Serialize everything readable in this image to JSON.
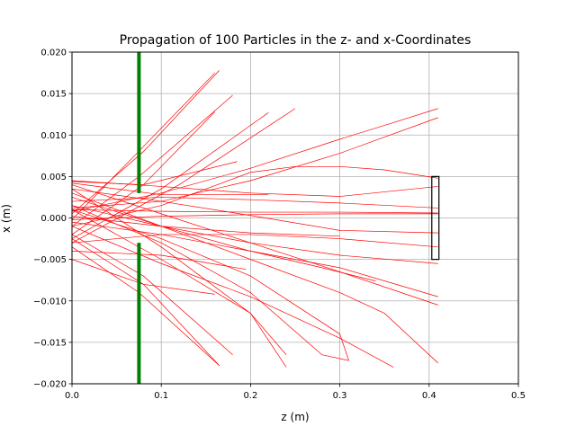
{
  "chart_data": {
    "type": "line",
    "title": "Propagation of 100 Particles in the z- and x-Coordinates",
    "xlabel": "z (m)",
    "ylabel": "x (m)",
    "xlim": [
      0,
      0.5
    ],
    "ylim": [
      -0.02,
      0.02
    ],
    "xticks": [
      0.0,
      0.1,
      0.2,
      0.3,
      0.4,
      0.5
    ],
    "xtick_labels": [
      "0.0",
      "0.1",
      "0.2",
      "0.3",
      "0.4",
      "0.5"
    ],
    "yticks": [
      -0.02,
      -0.015,
      -0.01,
      -0.005,
      0.0,
      0.005,
      0.01,
      0.015,
      0.02
    ],
    "ytick_labels": [
      "−0.020",
      "−0.015",
      "−0.010",
      "−0.005",
      "0.000",
      "0.005",
      "0.010",
      "0.015",
      "0.020"
    ],
    "grid": true,
    "trajectory_color": "#ff0000",
    "aperture_color": "#008000",
    "detector_color": "#000000",
    "aperture": {
      "z": 0.075,
      "upper": [
        0.003,
        0.02
      ],
      "lower": [
        -0.02,
        -0.003
      ]
    },
    "detector": {
      "z": [
        0.403,
        0.411
      ],
      "x": [
        -0.005,
        0.005
      ]
    },
    "series": [
      {
        "x": [
          0.0,
          0.08,
          0.165
        ],
        "y": [
          0.0005,
          0.008,
          0.0178
        ]
      },
      {
        "x": [
          0.0,
          0.07,
          0.16
        ],
        "y": [
          -0.0002,
          0.0075,
          0.0175
        ]
      },
      {
        "x": [
          0.0,
          0.075,
          0.18
        ],
        "y": [
          -0.001,
          0.005,
          0.0148
        ]
      },
      {
        "x": [
          0.0,
          0.08,
          0.16
        ],
        "y": [
          -0.002,
          0.004,
          0.0128
        ]
      },
      {
        "x": [
          0.0,
          0.1,
          0.22
        ],
        "y": [
          -0.0025,
          0.0035,
          0.0127
        ]
      },
      {
        "x": [
          0.0,
          0.12,
          0.25
        ],
        "y": [
          -0.003,
          0.004,
          0.0132
        ]
      },
      {
        "x": [
          0.0,
          0.08,
          0.185
        ],
        "y": [
          0.0044,
          0.004,
          0.0068
        ]
      },
      {
        "x": [
          0.0,
          0.1,
          0.2,
          0.3,
          0.36,
          0.41
        ],
        "y": [
          0.0008,
          0.003,
          0.006,
          0.0095,
          0.0115,
          0.0132
        ]
      },
      {
        "x": [
          0.0,
          0.1,
          0.2,
          0.3,
          0.41
        ],
        "y": [
          0.0012,
          0.002,
          0.0045,
          0.0078,
          0.0121
        ]
      },
      {
        "x": [
          0.0,
          0.1,
          0.2,
          0.25,
          0.3,
          0.35,
          0.41
        ],
        "y": [
          -0.001,
          0.0015,
          0.0055,
          0.0062,
          0.0062,
          0.0058,
          0.0048
        ]
      },
      {
        "x": [
          0.0,
          0.1,
          0.2,
          0.3,
          0.41
        ],
        "y": [
          0.0045,
          0.0038,
          0.003,
          0.0026,
          0.0038
        ]
      },
      {
        "x": [
          0.0,
          0.1,
          0.2,
          0.3,
          0.41
        ],
        "y": [
          0.002,
          0.0025,
          0.0022,
          0.0018,
          0.0012
        ]
      },
      {
        "x": [
          0.0,
          0.1,
          0.2,
          0.3,
          0.41
        ],
        "y": [
          0.001,
          0.0008,
          0.0007,
          0.0007,
          0.0006
        ]
      },
      {
        "x": [
          0.0,
          0.1,
          0.2,
          0.3,
          0.41
        ],
        "y": [
          -0.0002,
          0.0002,
          0.0004,
          0.0005,
          0.0005
        ]
      },
      {
        "x": [
          0.0,
          0.1,
          0.2,
          0.3,
          0.41
        ],
        "y": [
          0.0035,
          0.002,
          0.0003,
          -0.0015,
          -0.0018
        ]
      },
      {
        "x": [
          0.0,
          0.1,
          0.2,
          0.3,
          0.41
        ],
        "y": [
          -0.003,
          -0.002,
          -0.002,
          -0.0025,
          -0.0035
        ]
      },
      {
        "x": [
          0.0,
          0.1,
          0.2,
          0.3,
          0.41
        ],
        "y": [
          0.0015,
          -0.001,
          -0.003,
          -0.0045,
          -0.0055
        ]
      },
      {
        "x": [
          0.0,
          0.1,
          0.2,
          0.3,
          0.41
        ],
        "y": [
          -0.0005,
          -0.002,
          -0.004,
          -0.006,
          -0.0095
        ]
      },
      {
        "x": [
          0.0,
          0.1,
          0.2,
          0.3,
          0.41
        ],
        "y": [
          0.004,
          0.0005,
          -0.003,
          -0.0065,
          -0.0105
        ]
      },
      {
        "x": [
          0.0,
          0.1,
          0.2,
          0.3,
          0.35,
          0.41
        ],
        "y": [
          0.0025,
          -0.001,
          -0.005,
          -0.009,
          -0.0115,
          -0.0175
        ]
      },
      {
        "x": [
          0.0,
          0.1,
          0.2,
          0.28,
          0.34
        ],
        "y": [
          0.003,
          -0.001,
          -0.004,
          -0.006,
          -0.0076
        ]
      },
      {
        "x": [
          0.0,
          0.1,
          0.2,
          0.3,
          0.36
        ],
        "y": [
          -0.001,
          -0.0055,
          -0.0095,
          -0.0145,
          -0.018
        ]
      },
      {
        "x": [
          0.0,
          0.1,
          0.2,
          0.24
        ],
        "y": [
          0.0035,
          -0.0035,
          -0.0115,
          -0.018
        ]
      },
      {
        "x": [
          0.0,
          0.1,
          0.2,
          0.24
        ],
        "y": [
          0.001,
          -0.005,
          -0.0115,
          -0.0165
        ]
      },
      {
        "x": [
          0.0,
          0.1,
          0.2,
          0.28,
          0.31
        ],
        "y": [
          0.0015,
          -0.003,
          -0.009,
          -0.0165,
          -0.0172
        ]
      },
      {
        "x": [
          0.0,
          0.1,
          0.2,
          0.3,
          0.31
        ],
        "y": [
          0.001,
          -0.0025,
          -0.007,
          -0.014,
          -0.0172
        ]
      },
      {
        "x": [
          0.0,
          0.08,
          0.165
        ],
        "y": [
          -0.0025,
          -0.008,
          -0.0178
        ]
      },
      {
        "x": [
          0.0,
          0.08,
          0.18
        ],
        "y": [
          -0.002,
          -0.007,
          -0.0165
        ]
      },
      {
        "x": [
          0.0,
          0.075,
          0.165
        ],
        "y": [
          -0.0035,
          -0.009,
          -0.0178
        ]
      },
      {
        "x": [
          0.0,
          0.08,
          0.16
        ],
        "y": [
          -0.005,
          -0.008,
          -0.0092
        ]
      },
      {
        "x": [
          0.0,
          0.1,
          0.195
        ],
        "y": [
          -0.004,
          -0.0045,
          -0.0062
        ]
      },
      {
        "x": [
          0.0,
          0.1,
          0.2,
          0.3
        ],
        "y": [
          0.0002,
          -0.001,
          -0.0018,
          -0.0022
        ]
      },
      {
        "x": [
          0.0,
          0.1,
          0.22
        ],
        "y": [
          0.0042,
          0.0028,
          0.0028
        ]
      }
    ]
  }
}
